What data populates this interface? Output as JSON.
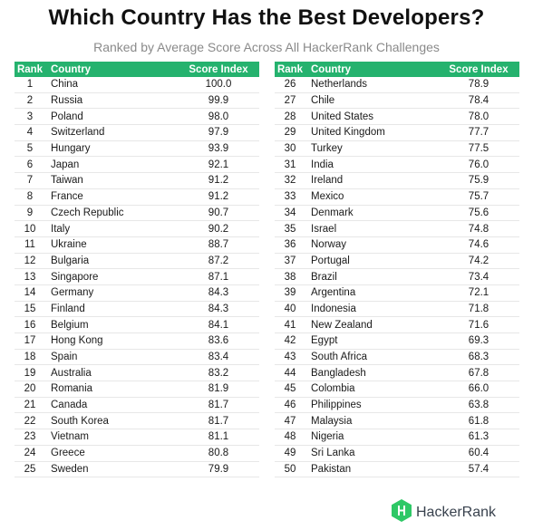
{
  "chart_data": {
    "type": "table",
    "title": "Which Country Has the Best Developers?",
    "subtitle": "Ranked by Average Score Across All HackerRank Challenges",
    "columns": [
      "Rank",
      "Country",
      "Score Index"
    ],
    "rows": [
      [
        1,
        "China",
        "100.0"
      ],
      [
        2,
        "Russia",
        "99.9"
      ],
      [
        3,
        "Poland",
        "98.0"
      ],
      [
        4,
        "Switzerland",
        "97.9"
      ],
      [
        5,
        "Hungary",
        "93.9"
      ],
      [
        6,
        "Japan",
        "92.1"
      ],
      [
        7,
        "Taiwan",
        "91.2"
      ],
      [
        8,
        "France",
        "91.2"
      ],
      [
        9,
        "Czech Republic",
        "90.7"
      ],
      [
        10,
        "Italy",
        "90.2"
      ],
      [
        11,
        "Ukraine",
        "88.7"
      ],
      [
        12,
        "Bulgaria",
        "87.2"
      ],
      [
        13,
        "Singapore",
        "87.1"
      ],
      [
        14,
        "Germany",
        "84.3"
      ],
      [
        15,
        "Finland",
        "84.3"
      ],
      [
        16,
        "Belgium",
        "84.1"
      ],
      [
        17,
        "Hong Kong",
        "83.6"
      ],
      [
        18,
        "Spain",
        "83.4"
      ],
      [
        19,
        "Australia",
        "83.2"
      ],
      [
        20,
        "Romania",
        "81.9"
      ],
      [
        21,
        "Canada",
        "81.7"
      ],
      [
        22,
        "South Korea",
        "81.7"
      ],
      [
        23,
        "Vietnam",
        "81.1"
      ],
      [
        24,
        "Greece",
        "80.8"
      ],
      [
        25,
        "Sweden",
        "79.9"
      ],
      [
        26,
        "Netherlands",
        "78.9"
      ],
      [
        27,
        "Chile",
        "78.4"
      ],
      [
        28,
        "United States",
        "78.0"
      ],
      [
        29,
        "United Kingdom",
        "77.7"
      ],
      [
        30,
        "Turkey",
        "77.5"
      ],
      [
        31,
        "India",
        "76.0"
      ],
      [
        32,
        "Ireland",
        "75.9"
      ],
      [
        33,
        "Mexico",
        "75.7"
      ],
      [
        34,
        "Denmark",
        "75.6"
      ],
      [
        35,
        "Israel",
        "74.8"
      ],
      [
        36,
        "Norway",
        "74.6"
      ],
      [
        37,
        "Portugal",
        "74.2"
      ],
      [
        38,
        "Brazil",
        "73.4"
      ],
      [
        39,
        "Argentina",
        "72.1"
      ],
      [
        40,
        "Indonesia",
        "71.8"
      ],
      [
        41,
        "New Zealand",
        "71.6"
      ],
      [
        42,
        "Egypt",
        "69.3"
      ],
      [
        43,
        "South Africa",
        "68.3"
      ],
      [
        44,
        "Bangladesh",
        "67.8"
      ],
      [
        45,
        "Colombia",
        "66.0"
      ],
      [
        46,
        "Philippines",
        "63.8"
      ],
      [
        47,
        "Malaysia",
        "61.8"
      ],
      [
        48,
        "Nigeria",
        "61.3"
      ],
      [
        49,
        "Sri Lanka",
        "60.4"
      ],
      [
        50,
        "Pakistan",
        "57.4"
      ]
    ]
  },
  "brand": {
    "name": "HackerRank",
    "icon": "hackerrank-logo-icon",
    "logo_color": "#2ec866"
  },
  "colors": {
    "header_bg": "#25b26e",
    "header_text": "#ffffff",
    "subtitle": "#8a8a8a"
  }
}
